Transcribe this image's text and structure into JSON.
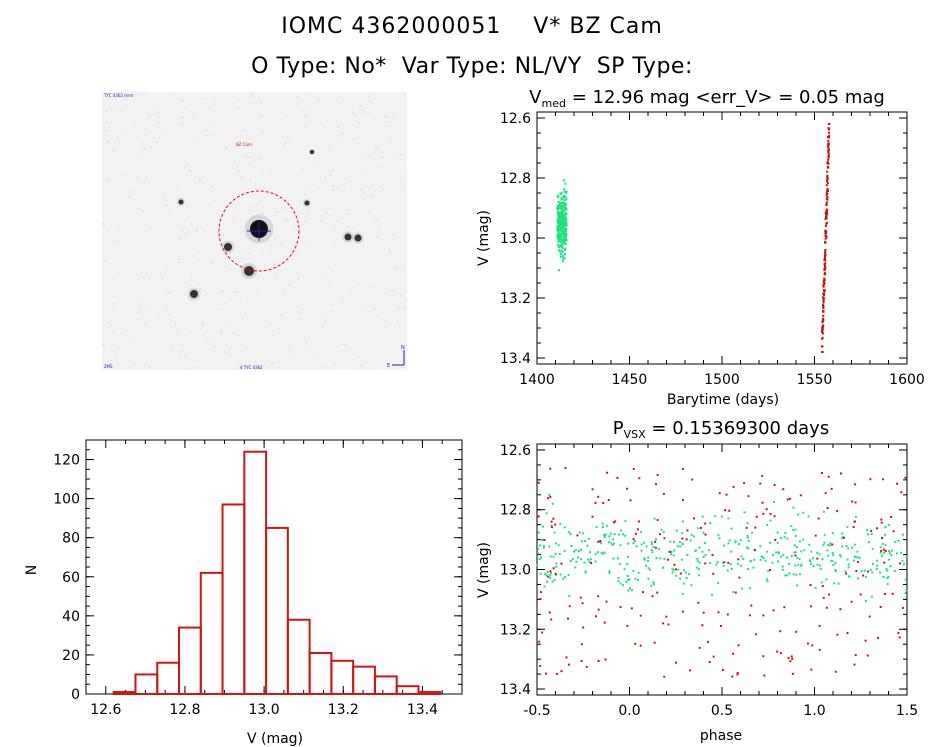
{
  "header": {
    "line1": "IOMC 4362000051    V* BZ Cam",
    "line2": "O Type: No*  Var Type: NL/VY  SP Type:"
  },
  "colors": {
    "cam1": "#1fe27f",
    "cam2": "#c8150f",
    "hist": "#d41414"
  },
  "image_panel": {
    "type": "star-field-cutout",
    "labels": {
      "top_left": "TYC 4362 mml",
      "target_label": "BZ Cam",
      "bottom_left": "2MS",
      "bottom_center": "4 TYC 4362"
    },
    "compass": [
      "N",
      "E"
    ]
  },
  "chart_data": [
    {
      "id": "light-curve",
      "type": "scatter",
      "title_parts": {
        "v": "V",
        "sub": "med",
        "rest": " = 12.96 mag <err_V> = 0.05 mag"
      },
      "xlabel": "Barytime (days)",
      "ylabel": "V (mag)",
      "xlim": [
        1400,
        1600
      ],
      "ylim": [
        13.42,
        12.58
      ],
      "xticks": [
        "1400",
        "1450",
        "1500",
        "1550",
        "1600"
      ],
      "yticks": [
        "12.6",
        "12.8",
        "13.0",
        "13.2",
        "13.4"
      ],
      "series": [
        {
          "x_range": [
            1411,
            1416
          ],
          "y_mean": 12.95,
          "y_sd": 0.05,
          "y_range": [
            12.68,
            13.18
          ],
          "n": 360
        },
        {
          "x_range": [
            1554,
            1558
          ],
          "y_min": 12.62,
          "y_max": 13.38,
          "n": 180,
          "trend": "brightening-with-time"
        }
      ]
    },
    {
      "id": "histogram",
      "type": "bar",
      "xlabel": "V (mag)",
      "ylabel": "N",
      "xlim": [
        12.55,
        13.5
      ],
      "ylim": [
        0,
        130
      ],
      "xticks": [
        "12.6",
        "12.8",
        "13.0",
        "13.2",
        "13.4"
      ],
      "yticks": [
        "0",
        "20",
        "40",
        "60",
        "80",
        "100",
        "120"
      ],
      "bin_edges": [
        12.62,
        12.675,
        12.73,
        12.785,
        12.84,
        12.895,
        12.95,
        13.005,
        13.06,
        13.115,
        13.17,
        13.225,
        13.28,
        13.335,
        13.39
      ],
      "values": [
        1,
        10,
        16,
        34,
        62,
        97,
        124,
        85,
        38,
        21,
        17,
        14,
        9,
        4,
        1
      ]
    },
    {
      "id": "phased-curve",
      "type": "scatter",
      "title_parts": {
        "p": "P",
        "sub": "VSX",
        "rest": " = 0.15369300 days"
      },
      "xlabel": "phase",
      "ylabel": "V (mag)",
      "xlim": [
        -0.5,
        1.5
      ],
      "ylim": [
        13.42,
        12.58
      ],
      "xticks": [
        "-0.5",
        "0.0",
        "0.5",
        "1.0",
        "1.5"
      ],
      "yticks": [
        "12.6",
        "12.8",
        "13.0",
        "13.2",
        "13.4"
      ],
      "period_days": 0.153693
    }
  ]
}
